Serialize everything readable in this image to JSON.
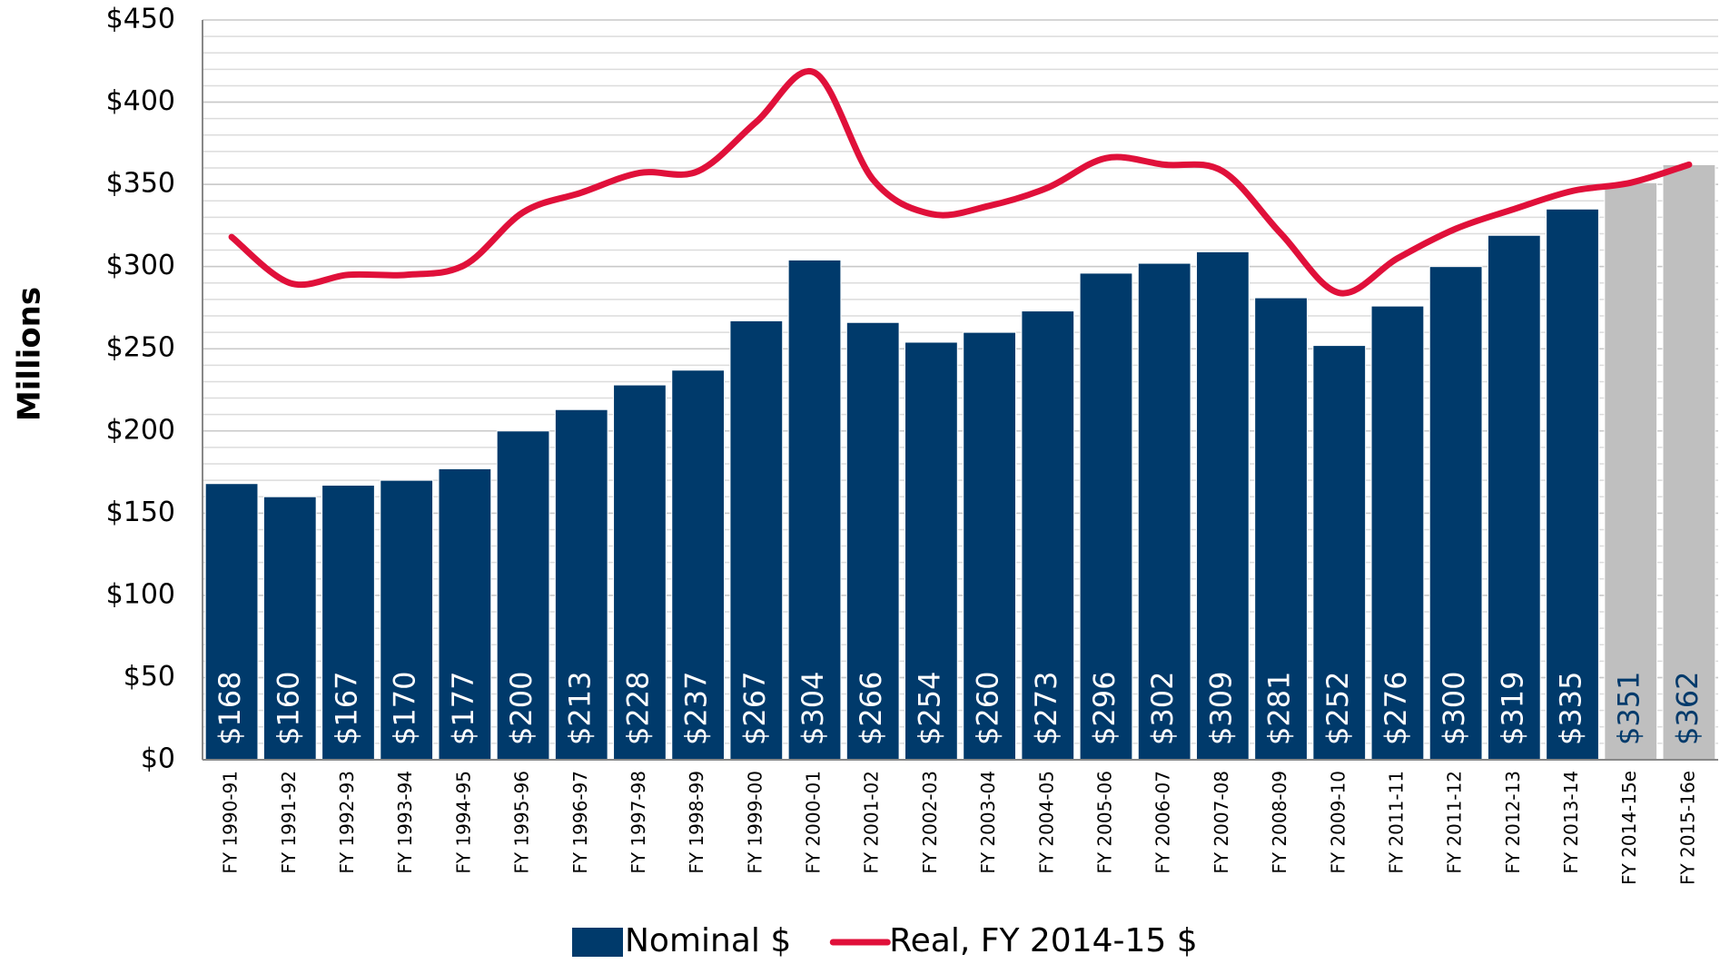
{
  "chart_data": {
    "type": "bar",
    "y_label": "Millions",
    "categories": [
      "FY 1990-91",
      "FY 1991-92",
      "FY 1992-93",
      "FY 1993-94",
      "FY 1994-95",
      "FY 1995-96",
      "FY 1996-97",
      "FY 1997-98",
      "FY 1998-99",
      "FY 1999-00",
      "FY 2000-01",
      "FY 2001-02",
      "FY 2002-03",
      "FY 2003-04",
      "FY 2004-05",
      "FY 2005-06",
      "FY 2006-07",
      "FY 2007-08",
      "FY 2008-09",
      "FY 2009-10",
      "FY 2011-11",
      "FY 2011-12",
      "FY 2012-13",
      "FY 2013-14",
      "FY 2014-15e",
      "FY 2015-16e"
    ],
    "series": [
      {
        "name": "Nominal $",
        "type": "bar",
        "color": "#003a6b",
        "point_colors": [
          "#003a6b",
          "#003a6b",
          "#003a6b",
          "#003a6b",
          "#003a6b",
          "#003a6b",
          "#003a6b",
          "#003a6b",
          "#003a6b",
          "#003a6b",
          "#003a6b",
          "#003a6b",
          "#003a6b",
          "#003a6b",
          "#003a6b",
          "#003a6b",
          "#003a6b",
          "#003a6b",
          "#003a6b",
          "#003a6b",
          "#003a6b",
          "#003a6b",
          "#003a6b",
          "#003a6b",
          "#bfbfbf",
          "#bfbfbf"
        ],
        "values": [
          168,
          160,
          167,
          170,
          177,
          200,
          213,
          228,
          237,
          267,
          304,
          266,
          254,
          260,
          273,
          296,
          302,
          309,
          281,
          252,
          276,
          300,
          319,
          335,
          351,
          362
        ],
        "value_labels": [
          "$168",
          "$160",
          "$167",
          "$170",
          "$177",
          "$200",
          "$213",
          "$228",
          "$237",
          "$267",
          "$304",
          "$266",
          "$254",
          "$260",
          "$273",
          "$296",
          "$302",
          "$309",
          "$281",
          "$252",
          "$276",
          "$300",
          "$319",
          "$335",
          "$351",
          "$362"
        ]
      },
      {
        "name": "Real, FY 2014-15 $",
        "type": "line",
        "color": "#e0103a",
        "values": [
          318,
          290,
          295,
          295,
          301,
          333,
          345,
          357,
          358,
          388,
          418,
          353,
          332,
          337,
          348,
          366,
          362,
          358,
          320,
          284,
          305,
          323,
          335,
          346,
          351,
          362
        ]
      }
    ],
    "ylim": [
      0,
      450
    ],
    "yticks": [
      {
        "value": 0,
        "label": "$0"
      },
      {
        "value": 50,
        "label": "$50"
      },
      {
        "value": 100,
        "label": "$100"
      },
      {
        "value": 150,
        "label": "$150"
      },
      {
        "value": 200,
        "label": "$200"
      },
      {
        "value": 250,
        "label": "$250"
      },
      {
        "value": 300,
        "label": "$300"
      },
      {
        "value": 350,
        "label": "$350"
      },
      {
        "value": 400,
        "label": "$400"
      },
      {
        "value": 450,
        "label": "$450"
      }
    ],
    "minor_grid_step": 10,
    "grid": true,
    "legend": "bottom"
  }
}
